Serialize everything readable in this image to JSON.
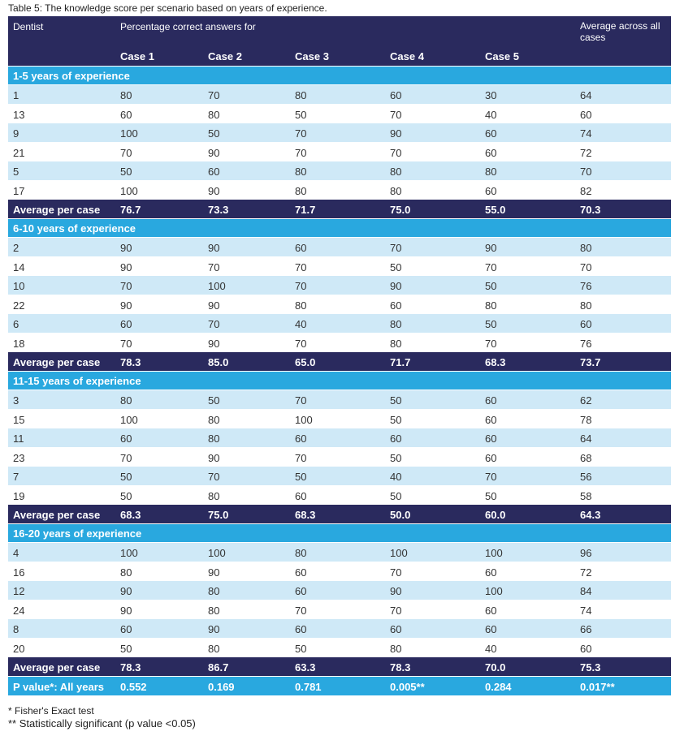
{
  "caption": "Table 5: The knowledge score per scenario based on years of experience.",
  "header": {
    "dentist": "Dentist",
    "percentage": "Percentage correct answers for",
    "average_all": "Average across all cases",
    "cases": [
      "Case 1",
      "Case 2",
      "Case 3",
      "Case 4",
      "Case 5"
    ]
  },
  "groups": [
    {
      "label": "1-5 years of experience",
      "rows": [
        [
          "1",
          "80",
          "70",
          "80",
          "60",
          "30",
          "64"
        ],
        [
          "13",
          "60",
          "80",
          "50",
          "70",
          "40",
          "60"
        ],
        [
          "9",
          "100",
          "50",
          "70",
          "90",
          "60",
          "74"
        ],
        [
          "21",
          "70",
          "90",
          "70",
          "70",
          "60",
          "72"
        ],
        [
          "5",
          "50",
          "60",
          "80",
          "80",
          "80",
          "70"
        ],
        [
          "17",
          "100",
          "90",
          "80",
          "80",
          "60",
          "82"
        ]
      ],
      "average": [
        "Average per case",
        "76.7",
        "73.3",
        "71.7",
        "75.0",
        "55.0",
        "70.3"
      ]
    },
    {
      "label": "6-10 years of experience",
      "rows": [
        [
          "2",
          "90",
          "90",
          "60",
          "70",
          "90",
          "80"
        ],
        [
          "14",
          "90",
          "70",
          "70",
          "50",
          "70",
          "70"
        ],
        [
          "10",
          "70",
          "100",
          "70",
          "90",
          "50",
          "76"
        ],
        [
          "22",
          "90",
          "90",
          "80",
          "60",
          "80",
          "80"
        ],
        [
          "6",
          "60",
          "70",
          "40",
          "80",
          "50",
          "60"
        ],
        [
          "18",
          "70",
          "90",
          "70",
          "80",
          "70",
          "76"
        ]
      ],
      "average": [
        "Average per case",
        "78.3",
        "85.0",
        "65.0",
        "71.7",
        "68.3",
        "73.7"
      ]
    },
    {
      "label": "11-15 years of experience",
      "rows": [
        [
          "3",
          "80",
          "50",
          "70",
          "50",
          "60",
          "62"
        ],
        [
          "15",
          "100",
          "80",
          "100",
          "50",
          "60",
          "78"
        ],
        [
          "11",
          "60",
          "80",
          "60",
          "60",
          "60",
          "64"
        ],
        [
          "23",
          "70",
          "90",
          "70",
          "50",
          "60",
          "68"
        ],
        [
          "7",
          "50",
          "70",
          "50",
          "40",
          "70",
          "56"
        ],
        [
          "19",
          "50",
          "80",
          "60",
          "50",
          "50",
          "58"
        ]
      ],
      "average": [
        "Average per case",
        "68.3",
        "75.0",
        "68.3",
        "50.0",
        "60.0",
        "64.3"
      ]
    },
    {
      "label": "16-20 years of experience",
      "rows": [
        [
          "4",
          "100",
          "100",
          "80",
          "100",
          "100",
          "96"
        ],
        [
          "16",
          "80",
          "90",
          "60",
          "70",
          "60",
          "72"
        ],
        [
          "12",
          "90",
          "80",
          "60",
          "90",
          "100",
          "84"
        ],
        [
          "24",
          "90",
          "80",
          "70",
          "70",
          "60",
          "74"
        ],
        [
          "8",
          "60",
          "90",
          "60",
          "60",
          "60",
          "66"
        ],
        [
          "20",
          "50",
          "80",
          "50",
          "80",
          "40",
          "60"
        ]
      ],
      "average": [
        "Average per case",
        "78.3",
        "86.7",
        "63.3",
        "78.3",
        "70.0",
        "75.3"
      ]
    }
  ],
  "pvalue": [
    "P value*: All years",
    "0.552",
    "0.169",
    "0.781",
    "0.005**",
    "0.284",
    "0.017**"
  ],
  "notes": {
    "note1": "* Fisher's Exact test",
    "note2": "** Statistically significant (p value <0.05)"
  },
  "colors": {
    "header": "#2a2a5e",
    "group": "#29a8df",
    "row_alt": "#cfe9f7"
  }
}
